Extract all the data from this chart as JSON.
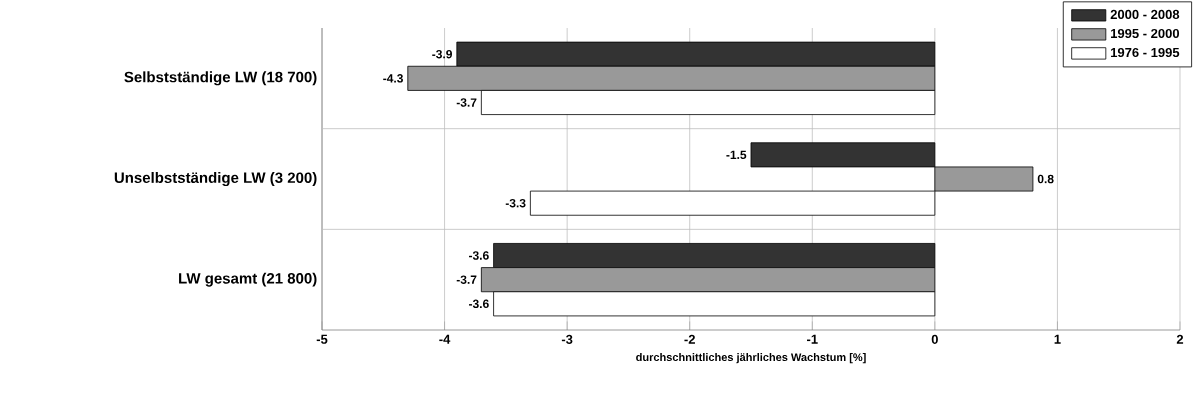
{
  "chart_data": {
    "type": "bar",
    "orientation": "horizontal",
    "xlabel": "durchschnittliches jährliches Wachstum [%]",
    "categories": [
      "Selbstständige LW (18 700)",
      "Unselbstständige LW (3 200)",
      "LW gesamt (21 800)"
    ],
    "series": [
      {
        "name": "2000 - 2008",
        "color": "#333333",
        "values": [
          -3.9,
          -1.5,
          -3.6
        ],
        "value_labels": [
          "-3.9",
          "-1.5",
          "-3.6"
        ]
      },
      {
        "name": "1995 - 2000",
        "color": "#999999",
        "values": [
          -4.3,
          0.8,
          -3.7
        ],
        "value_labels": [
          "-4.3",
          "0.8",
          "-3.7"
        ]
      },
      {
        "name": "1976 - 1995",
        "color": "#ffffff",
        "values": [
          -3.7,
          -3.3,
          -3.6
        ],
        "value_labels": [
          "-3.7",
          "-3.3",
          "-3.6"
        ]
      }
    ],
    "xlim": [
      -5,
      2
    ],
    "xticks": [
      -5,
      -4,
      -3,
      -2,
      -1,
      0,
      1,
      2
    ],
    "grid": true,
    "legend": "top right"
  }
}
